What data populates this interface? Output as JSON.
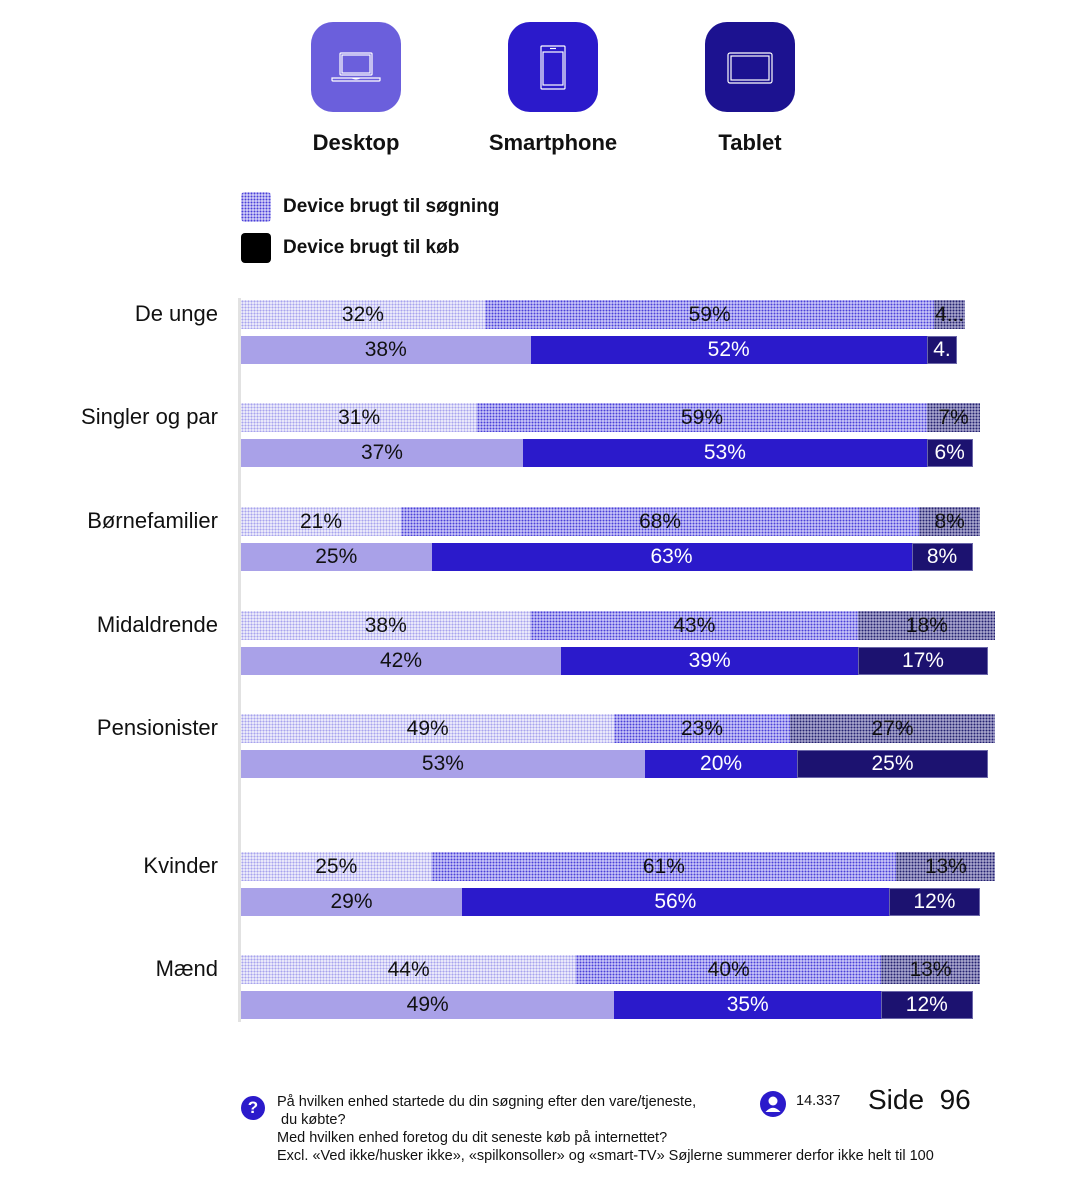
{
  "devices": [
    {
      "name": "Desktop",
      "icon": "laptop-icon",
      "color": "#6b5fdc"
    },
    {
      "name": "Smartphone",
      "icon": "smartphone-icon",
      "color": "#2b1acb"
    },
    {
      "name": "Tablet",
      "icon": "tablet-icon",
      "color": "#1c1290"
    }
  ],
  "legend": {
    "search_label": "Device brugt til søgning",
    "buy_label": "Device brugt til køb"
  },
  "chart_data": {
    "type": "bar",
    "orientation": "horizontal",
    "stacked": true,
    "title": "",
    "xlabel": "",
    "ylabel": "",
    "xlim": [
      0,
      100
    ],
    "series_names": [
      "Desktop",
      "Smartphone",
      "Tablet"
    ],
    "legend": [
      "Device brugt til søgning",
      "Device brugt til køb"
    ],
    "legend_position": "top-left",
    "categories": [
      "De unge",
      "Singler og par",
      "Børnefamilier",
      "Midaldrende",
      "Pensionister",
      "Kvinder",
      "Mænd"
    ],
    "groups": [
      {
        "label": "De unge",
        "search": {
          "values": [
            32,
            59,
            4
          ],
          "labels": [
            "32%",
            "59%",
            "4..."
          ]
        },
        "buy": {
          "values": [
            38,
            52,
            4
          ],
          "labels": [
            "38%",
            "52%",
            "4."
          ]
        }
      },
      {
        "label": "Singler og par",
        "search": {
          "values": [
            31,
            59,
            7
          ],
          "labels": [
            "31%",
            "59%",
            "7%"
          ]
        },
        "buy": {
          "values": [
            37,
            53,
            6
          ],
          "labels": [
            "37%",
            "53%",
            "6%"
          ]
        }
      },
      {
        "label": "Børnefamilier",
        "search": {
          "values": [
            21,
            68,
            8
          ],
          "labels": [
            "21%",
            "68%",
            "8%"
          ]
        },
        "buy": {
          "values": [
            25,
            63,
            8
          ],
          "labels": [
            "25%",
            "63%",
            "8%"
          ]
        }
      },
      {
        "label": "Midaldrende",
        "search": {
          "values": [
            38,
            43,
            18
          ],
          "labels": [
            "38%",
            "43%",
            "18%"
          ]
        },
        "buy": {
          "values": [
            42,
            39,
            17
          ],
          "labels": [
            "42%",
            "39%",
            "17%"
          ]
        }
      },
      {
        "label": "Pensionister",
        "search": {
          "values": [
            49,
            23,
            27
          ],
          "labels": [
            "49%",
            "23%",
            "27%"
          ]
        },
        "buy": {
          "values": [
            53,
            20,
            25
          ],
          "labels": [
            "53%",
            "20%",
            "25%"
          ]
        }
      },
      {
        "label": "Kvinder",
        "search": {
          "values": [
            25,
            61,
            13
          ],
          "labels": [
            "25%",
            "61%",
            "13%"
          ]
        },
        "buy": {
          "values": [
            29,
            56,
            12
          ],
          "labels": [
            "29%",
            "56%",
            "12%"
          ]
        }
      },
      {
        "label": "Mænd",
        "search": {
          "values": [
            44,
            40,
            13
          ],
          "labels": [
            "44%",
            "40%",
            "13%"
          ]
        },
        "buy": {
          "values": [
            49,
            35,
            12
          ],
          "labels": [
            "49%",
            "35%",
            "12%"
          ]
        }
      }
    ]
  },
  "footer": {
    "question_lines": [
      "På hvilken enhed startede du din søgning efter den vare/tjeneste,",
      " du købte?",
      "Med hvilken enhed foretog du dit seneste køb på internettet?",
      "Excl. «Ved ikke/husker ikke», «spilkonsoller» og «smart-TV» Søjlerne summerer derfor ikke helt til 100"
    ],
    "respondents": "14.337",
    "page_label": "Side  96"
  }
}
